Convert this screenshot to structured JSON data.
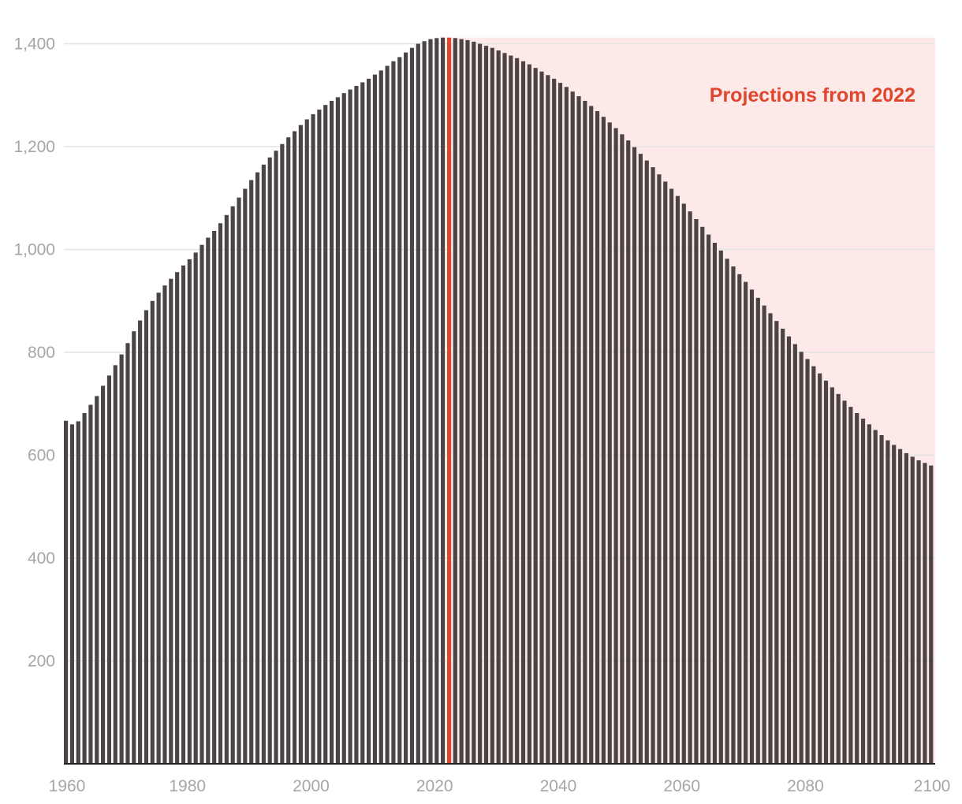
{
  "chart_data": {
    "type": "bar",
    "title": "",
    "xlabel": "",
    "ylabel": "",
    "x_start": 1960,
    "x_end": 2100,
    "xlim": [
      1960,
      2100
    ],
    "ylim": [
      0,
      1412
    ],
    "x_ticks": [
      1960,
      1980,
      2000,
      2020,
      2040,
      2060,
      2080,
      2100
    ],
    "x_tick_labels": [
      "1960",
      "1980",
      "2000",
      "2020",
      "2040",
      "2060",
      "2080",
      "2100"
    ],
    "y_ticks": [
      200,
      400,
      600,
      800,
      1000,
      1200,
      1400
    ],
    "y_tick_labels": [
      "200",
      "400",
      "600",
      "800",
      "1,000",
      "1,200",
      "1,400"
    ],
    "grid": "horizontal",
    "highlight_year": 2022,
    "projection_start": 2022,
    "annotation": "Projections from 2022",
    "values": [
      667,
      660,
      666,
      682,
      698,
      715,
      735,
      755,
      775,
      796,
      818,
      841,
      862,
      882,
      900,
      916,
      930,
      943,
      956,
      969,
      981,
      994,
      1009,
      1023,
      1036,
      1051,
      1067,
      1084,
      1101,
      1118,
      1135,
      1150,
      1165,
      1179,
      1192,
      1205,
      1218,
      1230,
      1242,
      1253,
      1263,
      1272,
      1281,
      1289,
      1296,
      1304,
      1311,
      1318,
      1325,
      1332,
      1340,
      1348,
      1357,
      1366,
      1374,
      1383,
      1392,
      1400,
      1405,
      1409,
      1411,
      1412,
      1412,
      1411,
      1409,
      1407,
      1404,
      1400,
      1396,
      1392,
      1387,
      1382,
      1377,
      1372,
      1366,
      1360,
      1353,
      1346,
      1339,
      1332,
      1324,
      1316,
      1307,
      1298,
      1289,
      1279,
      1269,
      1258,
      1247,
      1236,
      1224,
      1212,
      1199,
      1186,
      1173,
      1160,
      1146,
      1132,
      1118,
      1104,
      1089,
      1074,
      1059,
      1044,
      1029,
      1013,
      998,
      982,
      967,
      952,
      937,
      922,
      906,
      891,
      876,
      861,
      846,
      831,
      816,
      801,
      787,
      773,
      759,
      745,
      732,
      719,
      706,
      694,
      682,
      671,
      660,
      649,
      639,
      629,
      620,
      612,
      604,
      597,
      590,
      585,
      580
    ],
    "colors": {
      "bar": "#4a4544",
      "highlight_bar": "#e0452e",
      "projection_band": "#fde9e8",
      "annotation": "#e0452e",
      "grid": "#e4e4e4",
      "axis": "#222222",
      "tick_label": "#a6a6a6"
    }
  }
}
